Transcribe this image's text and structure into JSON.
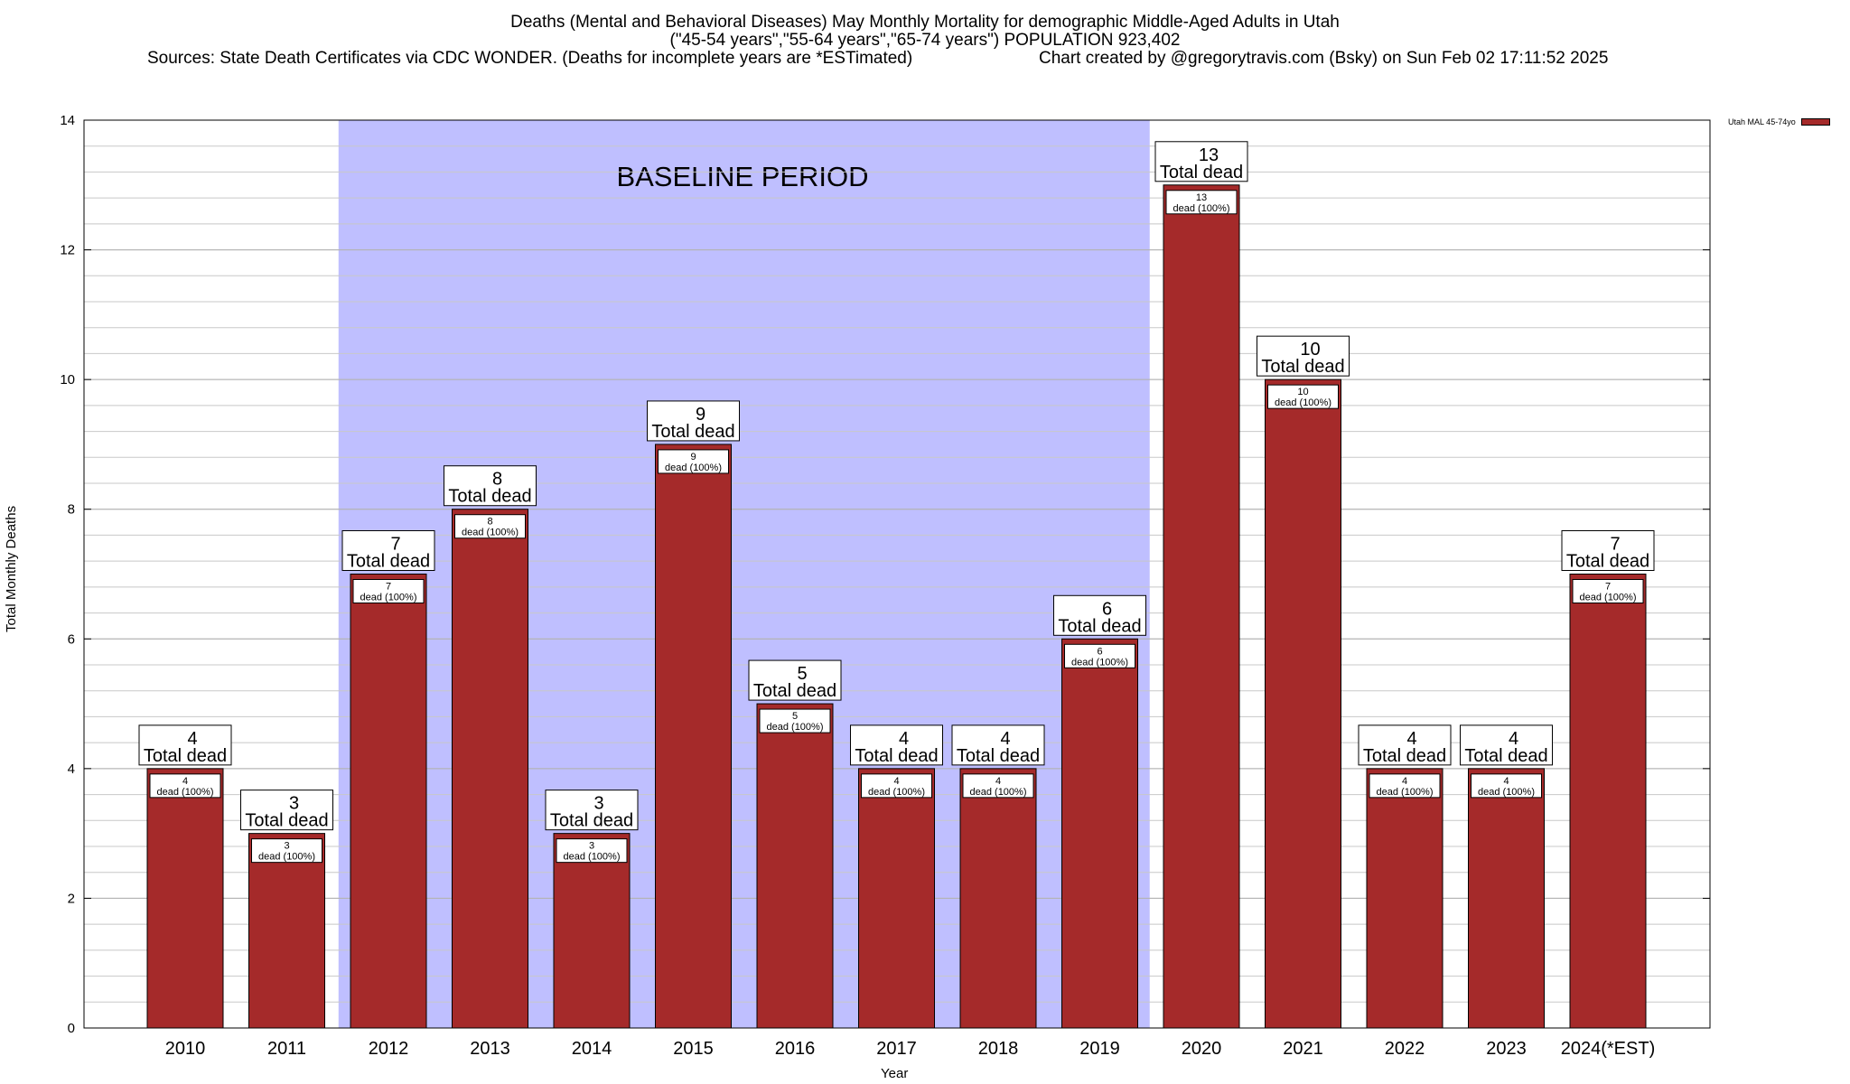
{
  "titles": {
    "line1": "Deaths (Mental and Behavioral Diseases) May Monthly Mortality for demographic Middle-Aged Adults in Utah",
    "line2": "(\"45-54 years\",\"55-64 years\",\"65-74 years\") POPULATION 923,402",
    "line3_left": "Sources: State Death Certificates via CDC WONDER. (Deaths for incomplete years are *ESTimated)",
    "line3_right": "Chart created by @gregorytravis.com (Bsky) on Sun Feb 02 17:11:52 2025"
  },
  "chart_data": {
    "type": "bar",
    "xlabel": "Year",
    "ylabel": "Total Monthly Deaths",
    "ylim": [
      0,
      14
    ],
    "y_major_ticks": [
      0,
      2,
      4,
      6,
      8,
      10,
      12,
      14
    ],
    "y_minor_step": 0.4,
    "grid": true,
    "legend_position": "top-right",
    "series_name": "Utah MAL 45-74yo",
    "bar_color": "#a52a2a",
    "baseline_color": "#bfbfff",
    "baseline_label": "BASELINE PERIOD",
    "baseline_range": [
      "2012",
      "2019"
    ],
    "top_label_text": "Total dead",
    "inner_label_text": "dead (100%)",
    "categories": [
      "2010",
      "2011",
      "2012",
      "2013",
      "2014",
      "2015",
      "2016",
      "2017",
      "2018",
      "2019",
      "2020",
      "2021",
      "2022",
      "2023",
      "2024(*EST)"
    ],
    "values": [
      4,
      3,
      7,
      8,
      3,
      9,
      5,
      4,
      4,
      6,
      13,
      10,
      4,
      4,
      7
    ]
  }
}
